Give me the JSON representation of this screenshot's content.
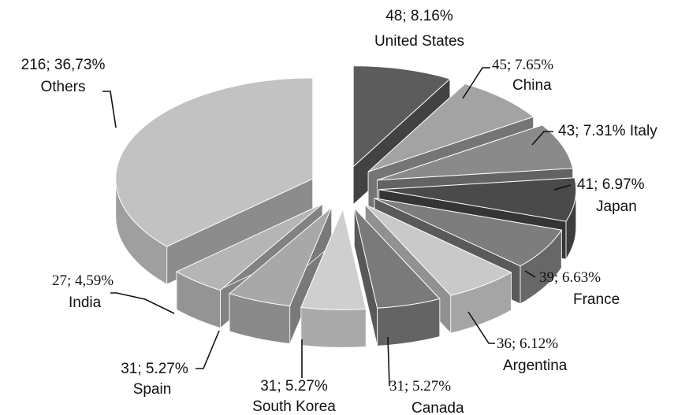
{
  "chart_data": {
    "type": "pie",
    "title": "",
    "slices": [
      {
        "name": "United States",
        "value": 48,
        "percent_text": "8.16%",
        "separator": "; ",
        "color": "#5c5c5c"
      },
      {
        "name": "China",
        "value": 45,
        "percent_text": "7.65%",
        "separator": "; ",
        "color": "#a3a3a3"
      },
      {
        "name": "Italy",
        "value": 43,
        "percent_text": "7.31%",
        "separator": "; ",
        "color": "#8a8a8a"
      },
      {
        "name": "Japan",
        "value": 41,
        "percent_text": "6.97%",
        "separator": "; ",
        "color": "#4a4a4a"
      },
      {
        "name": "France",
        "value": 39,
        "percent_text": "6.63%",
        "separator": "; ",
        "color": "#7d7d7d"
      },
      {
        "name": "Argentina",
        "value": 36,
        "percent_text": "6.12%",
        "separator": "; ",
        "color": "#c9c9c9"
      },
      {
        "name": "Canada",
        "value": 31,
        "percent_text": "5.27%",
        "separator": "; ",
        "color": "#7a7a7a"
      },
      {
        "name": "South Korea",
        "value": 31,
        "percent_text": "5.27%",
        "separator": "; ",
        "color": "#cfcfcf"
      },
      {
        "name": "Spain",
        "value": 31,
        "percent_text": "5.27%",
        "separator": "; ",
        "color": "#a8a8a8"
      },
      {
        "name": "India",
        "value": 27,
        "percent_text": "4,59%",
        "separator": "; ",
        "color": "#b5b5b5"
      },
      {
        "name": "Others",
        "value": 216,
        "percent_text": "36,73%",
        "separator": "; ",
        "color": "#c2c2c2"
      }
    ],
    "legend": "none",
    "style": "3d-exploded"
  }
}
